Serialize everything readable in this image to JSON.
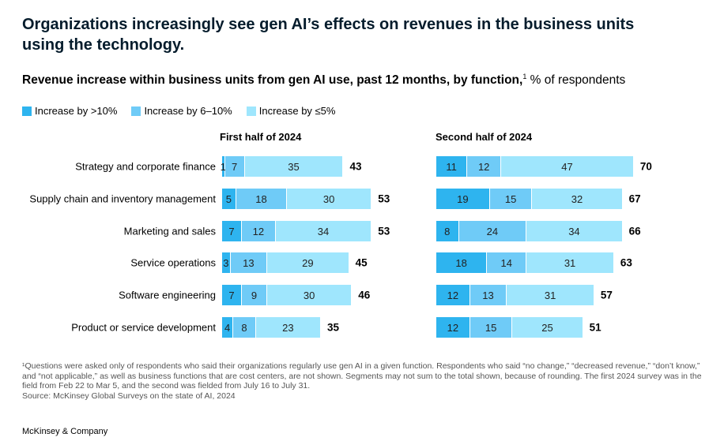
{
  "title": "Organizations increasingly see gen AI’s effects on revenues in the business units using the technology.",
  "subtitle_bold": "Revenue increase within business units from gen AI use, past 12 months, by function,",
  "subtitle_sup": "1",
  "subtitle_rest": " % of respondents",
  "colors": [
    "#2eb4ef",
    "#6fcbf7",
    "#9fe6fd"
  ],
  "footnote": "¹Questions were asked only of respondents who said their organizations regularly use gen AI in a given function. Respondents who said “no change,” “decreased revenue,” “don’t know,” and “not applicable,” as well as business functions that are cost centers, are not shown. Segments may not sum to the total shown, because of rounding. The first 2024 survey was in the field from Feb 22 to Mar 5, and the second was fielded from July 16 to July 31.",
  "source": "Source: McKinsey Global Surveys on the state of AI, 2024",
  "brand": "McKinsey & Company",
  "chart_data": {
    "type": "bar",
    "stacked": true,
    "orientation": "horizontal",
    "legend": [
      "Increase by >10%",
      "Increase by 6–10%",
      "Increase by ≤5%"
    ],
    "legend_placement": "top-left",
    "categories": [
      "Strategy and corporate finance",
      "Supply chain and inventory management",
      "Marketing and sales",
      "Service operations",
      "Software engineering",
      "Product or service development"
    ],
    "panels": [
      {
        "title": "First half of 2024",
        "series": [
          {
            "name": "Increase by >10%",
            "values": [
              1,
              5,
              7,
              3,
              7,
              4
            ]
          },
          {
            "name": "Increase by 6–10%",
            "values": [
              7,
              18,
              12,
              13,
              9,
              8
            ]
          },
          {
            "name": "Increase by ≤5%",
            "values": [
              35,
              30,
              34,
              29,
              30,
              23
            ]
          }
        ],
        "totals": [
          43,
          53,
          53,
          45,
          46,
          35
        ]
      },
      {
        "title": "Second half of 2024",
        "series": [
          {
            "name": "Increase by >10%",
            "values": [
              11,
              19,
              8,
              18,
              12,
              12
            ]
          },
          {
            "name": "Increase by 6–10%",
            "values": [
              12,
              15,
              24,
              14,
              13,
              15
            ]
          },
          {
            "name": "Increase by ≤5%",
            "values": [
              47,
              32,
              34,
              31,
              31,
              25
            ]
          }
        ],
        "totals": [
          70,
          67,
          66,
          63,
          57,
          51
        ]
      }
    ]
  }
}
